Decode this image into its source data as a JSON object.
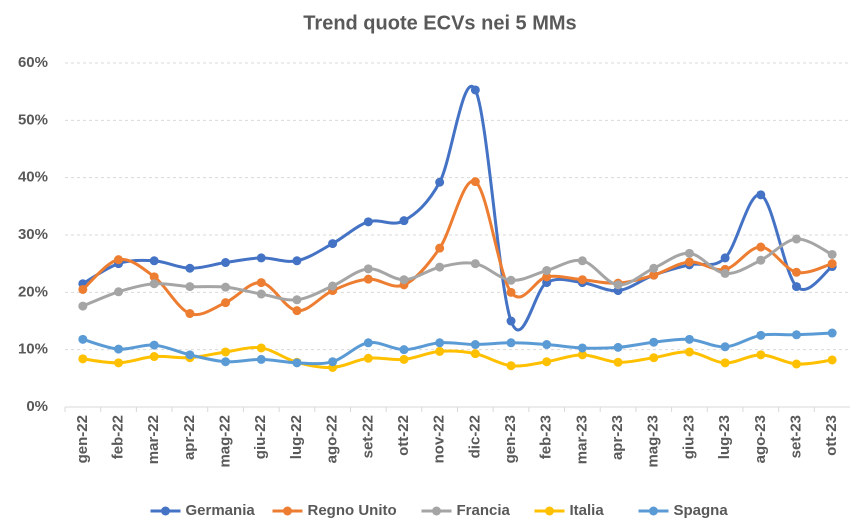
{
  "chart_data": {
    "type": "line",
    "title": "Trend quote ECVs nei 5 MMs",
    "categories": [
      "gen-22",
      "feb-22",
      "mar-22",
      "apr-22",
      "mag-22",
      "giu-22",
      "lug-22",
      "ago-22",
      "set-22",
      "ott-22",
      "nov-22",
      "dic-22",
      "gen-23",
      "feb-23",
      "mar-23",
      "apr-23",
      "mag-23",
      "giu-23",
      "lug-23",
      "ago-23",
      "set-23",
      "ott-23"
    ],
    "series": [
      {
        "name": "Germania",
        "color": "#4472c4",
        "values": [
          21.5,
          25,
          25.5,
          24.2,
          25.2,
          26,
          25.5,
          28.5,
          32.3,
          32.5,
          39.2,
          55.3,
          15,
          21.7,
          21.7,
          20.3,
          23,
          24.8,
          26,
          37,
          21,
          24.5
        ]
      },
      {
        "name": "Regno Unito",
        "color": "#ed7d31",
        "values": [
          20.5,
          25.7,
          22.7,
          16.3,
          18.2,
          21.7,
          16.8,
          20.3,
          22.3,
          21.3,
          27.7,
          39.3,
          20,
          22.7,
          22.2,
          21.6,
          23,
          25.3,
          24,
          27.9,
          23.5,
          25
        ]
      },
      {
        "name": "Francia",
        "color": "#a5a5a5",
        "values": [
          17.6,
          20.1,
          21.5,
          21,
          20.9,
          19.7,
          18.7,
          21.1,
          24.1,
          22.2,
          24.4,
          25,
          22.1,
          23.8,
          25.5,
          21.3,
          24.2,
          26.8,
          23.3,
          25.6,
          29.3,
          26.6
        ]
      },
      {
        "name": "Italia",
        "color": "#ffc000",
        "values": [
          8.4,
          7.7,
          8.8,
          8.6,
          9.6,
          10.3,
          7.8,
          6.9,
          8.5,
          8.3,
          9.7,
          9.3,
          7.2,
          7.9,
          9.1,
          7.8,
          8.6,
          9.6,
          7.7,
          9.1,
          7.5,
          8.2
        ]
      },
      {
        "name": "Spagna",
        "color": "#5b9bd5",
        "values": [
          11.8,
          10.1,
          10.8,
          9.1,
          7.9,
          8.3,
          7.7,
          7.9,
          11.2,
          10,
          11.2,
          10.9,
          11.2,
          10.9,
          10.3,
          10.4,
          11.3,
          11.8,
          10.5,
          12.5,
          12.6,
          12.9
        ]
      }
    ],
    "ylim": [
      0,
      60
    ],
    "yticks": [
      {
        "value": 0,
        "label": "0%"
      },
      {
        "value": 10,
        "label": "10%"
      },
      {
        "value": 20,
        "label": "20%"
      },
      {
        "value": 30,
        "label": "30%"
      },
      {
        "value": 40,
        "label": "40%"
      },
      {
        "value": 50,
        "label": "50%"
      },
      {
        "value": 60,
        "label": "60%"
      }
    ],
    "grid": true,
    "legend": "bottom"
  }
}
